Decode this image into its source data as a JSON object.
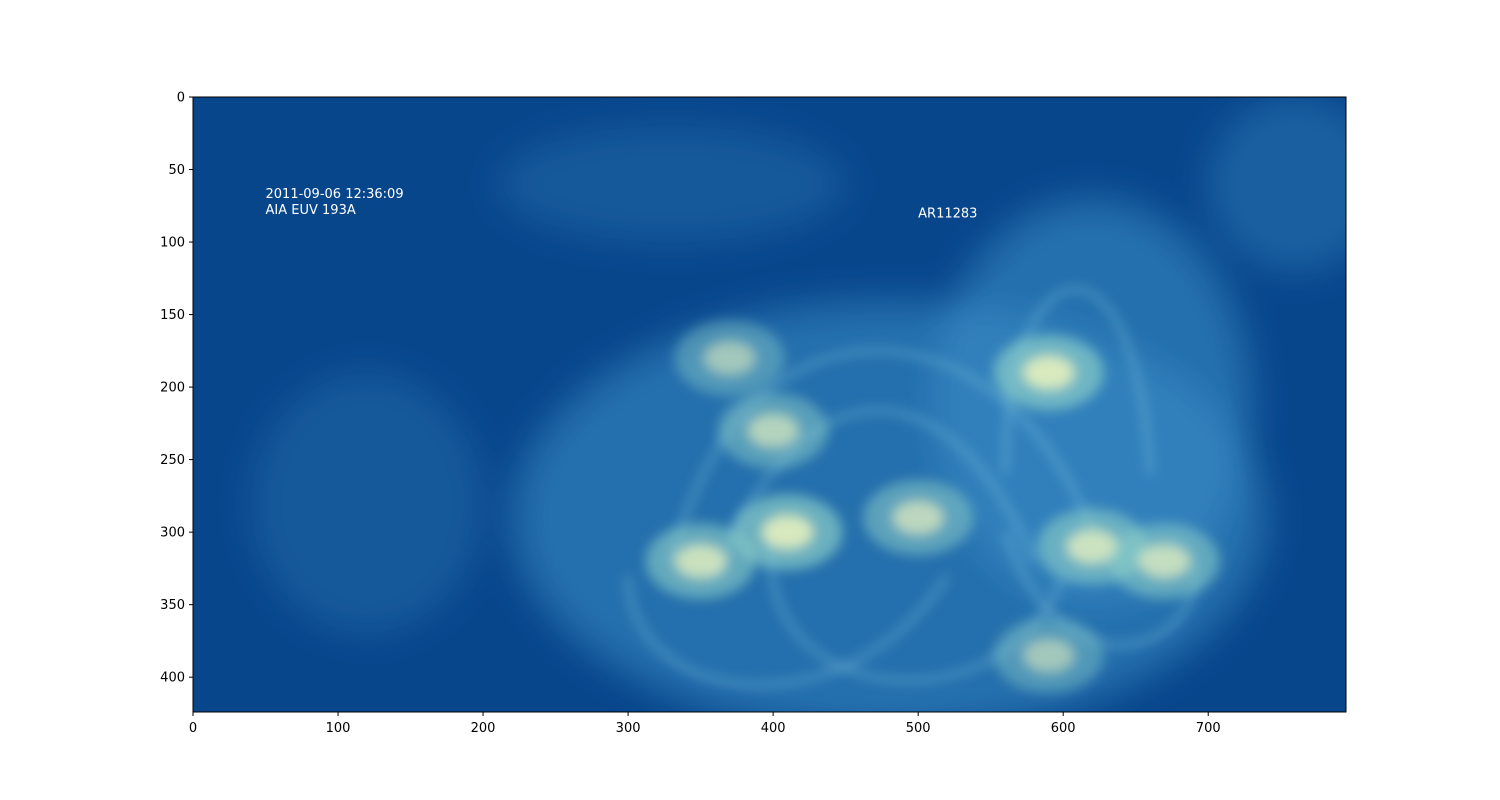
{
  "chart_data": {
    "type": "heatmap",
    "title": "",
    "xlabel": "",
    "ylabel": "",
    "xlim": [
      0,
      795
    ],
    "ylim": [
      424,
      0
    ],
    "y_axis_inverted": true,
    "x_ticks": [
      0,
      100,
      200,
      300,
      400,
      500,
      600,
      700
    ],
    "y_ticks": [
      0,
      50,
      100,
      150,
      200,
      250,
      300,
      350,
      400
    ],
    "colormap": {
      "low": "#08468c",
      "mid": "#3a8fc9",
      "high": "#f2f6bf"
    },
    "grid": false,
    "annotations": [
      {
        "x": 50,
        "y": 72,
        "lines": [
          "2011-09-06 12:36:09",
          "AIA EUV 193A"
        ]
      },
      {
        "x": 500,
        "y": 80,
        "lines": [
          "AR11283"
        ]
      }
    ],
    "bright_regions": [
      {
        "x": 410,
        "y": 300,
        "intensity": 0.95
      },
      {
        "x": 350,
        "y": 320,
        "intensity": 0.85
      },
      {
        "x": 590,
        "y": 190,
        "intensity": 0.95
      },
      {
        "x": 620,
        "y": 310,
        "intensity": 0.85
      },
      {
        "x": 670,
        "y": 320,
        "intensity": 0.8
      },
      {
        "x": 500,
        "y": 290,
        "intensity": 0.75
      },
      {
        "x": 400,
        "y": 230,
        "intensity": 0.7
      },
      {
        "x": 590,
        "y": 385,
        "intensity": 0.6
      },
      {
        "x": 370,
        "y": 180,
        "intensity": 0.6
      }
    ]
  }
}
